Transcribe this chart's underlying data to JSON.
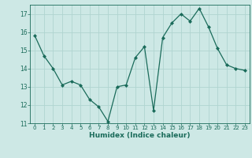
{
  "x": [
    0,
    1,
    2,
    3,
    4,
    5,
    6,
    7,
    8,
    9,
    10,
    11,
    12,
    13,
    14,
    15,
    16,
    17,
    18,
    19,
    20,
    21,
    22,
    23
  ],
  "y": [
    15.8,
    14.7,
    14.0,
    13.1,
    13.3,
    13.1,
    12.3,
    11.9,
    11.1,
    13.0,
    13.1,
    14.6,
    15.2,
    11.7,
    15.7,
    16.5,
    17.0,
    16.6,
    17.3,
    16.3,
    15.1,
    14.2,
    14.0,
    13.9
  ],
  "line_color": "#1a6b5a",
  "marker": "D",
  "marker_size": 2.0,
  "bg_color": "#cde8e5",
  "grid_color": "#b0d4d0",
  "tick_color": "#1a6b5a",
  "xlabel": "Humidex (Indice chaleur)",
  "ylim": [
    11,
    17.5
  ],
  "xlim": [
    -0.5,
    23.5
  ],
  "yticks": [
    11,
    12,
    13,
    14,
    15,
    16,
    17
  ],
  "xticks": [
    0,
    1,
    2,
    3,
    4,
    5,
    6,
    7,
    8,
    9,
    10,
    11,
    12,
    13,
    14,
    15,
    16,
    17,
    18,
    19,
    20,
    21,
    22,
    23
  ]
}
